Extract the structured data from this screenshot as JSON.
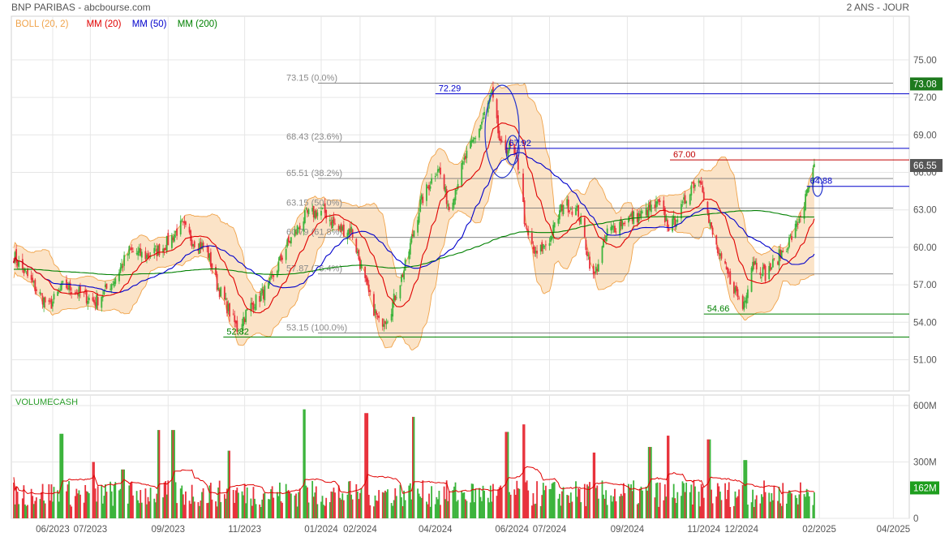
{
  "header": {
    "title": "BNP PARIBAS - abcbourse.com",
    "period": "2 ANS - JOUR"
  },
  "legend": [
    {
      "label": "BOLL (20, 2)",
      "color": "#f0a34a"
    },
    {
      "label": "MM (20)",
      "color": "#e00000"
    },
    {
      "label": "MM (50)",
      "color": "#0000cc"
    },
    {
      "label": "MM (200)",
      "color": "#008000"
    }
  ],
  "colors": {
    "up": "#3cb43c",
    "down": "#e8323c",
    "bollinger_fill": "#fbe3c7",
    "bollinger_line": "#f0a34a",
    "mm20": "#e00000",
    "mm50": "#0000cc",
    "mm200": "#008000",
    "grid": "#e6e6e6",
    "fib_line": "#777777",
    "fib_text": "#8a8a8a",
    "axis_text": "#555555",
    "price_badge": "#1e7a1e",
    "last_badge": "#555555",
    "volume_badge": "#1e9e1e"
  },
  "chart_data": [
    {
      "type": "candlestick",
      "title": "BNP PARIBAS - abcbourse.com",
      "x_labels": [
        "06/2023",
        "07/2023",
        "09/2023",
        "11/2023",
        "01/2024",
        "02/2024",
        "04/2024",
        "06/2024",
        "07/2024",
        "09/2024",
        "11/2024",
        "12/2024",
        "02/2025",
        "04/2025"
      ],
      "y_ticks": [
        "75.00",
        "72.00",
        "69.00",
        "66.00",
        "63.00",
        "60.00",
        "57.00",
        "54.00",
        "51.00"
      ],
      "ylim": [
        48.5,
        78.5
      ],
      "grid": true,
      "legend_position": "top-left",
      "price_path": [
        {
          "d": "2023-05-01",
          "p": 59.3
        },
        {
          "d": "2023-05-15",
          "p": 57.2
        },
        {
          "d": "2023-05-29",
          "p": 55.2
        },
        {
          "d": "2023-06-10",
          "p": 57.0
        },
        {
          "d": "2023-06-25",
          "p": 56.2
        },
        {
          "d": "2023-07-05",
          "p": 55.6
        },
        {
          "d": "2023-07-20",
          "p": 57.4
        },
        {
          "d": "2023-08-01",
          "p": 59.7
        },
        {
          "d": "2023-08-15",
          "p": 59.3
        },
        {
          "d": "2023-08-28",
          "p": 60.0
        },
        {
          "d": "2023-09-12",
          "p": 61.8
        },
        {
          "d": "2023-09-20",
          "p": 60.6
        },
        {
          "d": "2023-10-02",
          "p": 59.8
        },
        {
          "d": "2023-10-10",
          "p": 57.0
        },
        {
          "d": "2023-10-20",
          "p": 54.8
        },
        {
          "d": "2023-10-26",
          "p": 53.5
        },
        {
          "d": "2023-11-05",
          "p": 55.2
        },
        {
          "d": "2023-11-20",
          "p": 56.8
        },
        {
          "d": "2023-12-05",
          "p": 60.2
        },
        {
          "d": "2023-12-20",
          "p": 62.6
        },
        {
          "d": "2024-01-03",
          "p": 62.9
        },
        {
          "d": "2024-01-15",
          "p": 61.4
        },
        {
          "d": "2024-01-25",
          "p": 61.4
        },
        {
          "d": "2024-02-06",
          "p": 56.8
        },
        {
          "d": "2024-02-16",
          "p": 53.9
        },
        {
          "d": "2024-02-24",
          "p": 54.6
        },
        {
          "d": "2024-03-08",
          "p": 58.5
        },
        {
          "d": "2024-03-20",
          "p": 63.5
        },
        {
          "d": "2024-04-03",
          "p": 66.5
        },
        {
          "d": "2024-04-12",
          "p": 63.2
        },
        {
          "d": "2024-04-24",
          "p": 66.9
        },
        {
          "d": "2024-05-07",
          "p": 69.8
        },
        {
          "d": "2024-05-16",
          "p": 72.2
        },
        {
          "d": "2024-05-23",
          "p": 68.0
        },
        {
          "d": "2024-05-31",
          "p": 67.9
        },
        {
          "d": "2024-06-07",
          "p": 66.3
        },
        {
          "d": "2024-06-12",
          "p": 61.3
        },
        {
          "d": "2024-06-20",
          "p": 59.3
        },
        {
          "d": "2024-07-02",
          "p": 60.8
        },
        {
          "d": "2024-07-12",
          "p": 63.6
        },
        {
          "d": "2024-07-24",
          "p": 62.8
        },
        {
          "d": "2024-08-05",
          "p": 57.5
        },
        {
          "d": "2024-08-16",
          "p": 61.2
        },
        {
          "d": "2024-08-30",
          "p": 62.2
        },
        {
          "d": "2024-09-12",
          "p": 62.6
        },
        {
          "d": "2024-09-26",
          "p": 63.4
        },
        {
          "d": "2024-10-05",
          "p": 61.5
        },
        {
          "d": "2024-10-14",
          "p": 63.0
        },
        {
          "d": "2024-10-22",
          "p": 65.0
        },
        {
          "d": "2024-10-30",
          "p": 65.5
        },
        {
          "d": "2024-11-05",
          "p": 62.0
        },
        {
          "d": "2024-11-14",
          "p": 59.0
        },
        {
          "d": "2024-11-24",
          "p": 57.0
        },
        {
          "d": "2024-12-02",
          "p": 55.2
        },
        {
          "d": "2024-12-10",
          "p": 59.0
        },
        {
          "d": "2024-12-20",
          "p": 57.8
        },
        {
          "d": "2025-01-03",
          "p": 59.7
        },
        {
          "d": "2025-01-12",
          "p": 61.2
        },
        {
          "d": "2025-01-20",
          "p": 63.5
        },
        {
          "d": "2025-01-28",
          "p": 66.3
        }
      ],
      "fibonacci": {
        "high": 73.15,
        "low": 53.15,
        "start": "2024-01-01",
        "levels": [
          {
            "label": "73.15",
            "pct": "(0.0%)",
            "value": 73.15
          },
          {
            "label": "68.43",
            "pct": "(23.6%)",
            "value": 68.43
          },
          {
            "label": "65.51",
            "pct": "(38.2%)",
            "value": 65.51
          },
          {
            "label": "63.15",
            "pct": "(50.0%)",
            "value": 63.15
          },
          {
            "label": "60.79",
            "pct": "(61.8%)",
            "value": 60.79
          },
          {
            "label": "57.87",
            "pct": "(76.4%)",
            "value": 57.87
          },
          {
            "label": "53.15",
            "pct": "(100.0%)",
            "value": 53.15
          }
        ]
      },
      "annotations": [
        {
          "text": "72.29",
          "value": 72.29,
          "start": "2024-04-01",
          "color": "#0000cc"
        },
        {
          "text": "67.92",
          "value": 67.92,
          "start": "2024-05-27",
          "color": "#0000cc"
        },
        {
          "text": "67.00",
          "value": 67.0,
          "start": "2024-10-05",
          "color": "#c00000"
        },
        {
          "text": "64.88",
          "value": 64.88,
          "start": "2025-01-22",
          "color": "#0000cc"
        },
        {
          "text": "54.66",
          "value": 54.66,
          "start": "2024-11-01",
          "color": "#008000"
        },
        {
          "text": "52.82",
          "value": 52.82,
          "start": "2023-10-15",
          "color": "#008000"
        }
      ],
      "price_badges": [
        {
          "text": "73.08",
          "value": 73.08,
          "kind": "price"
        },
        {
          "text": "66.55",
          "value": 66.55,
          "kind": "last"
        }
      ]
    },
    {
      "type": "bar",
      "title": "VOLUMECASH",
      "y_ticks": [
        "600M",
        "300M",
        "0"
      ],
      "ylim": [
        0,
        600
      ],
      "unit": "M",
      "last_value": "162M",
      "typical_range": [
        60,
        250
      ],
      "spikes": [
        {
          "d": "2023-06-08",
          "v": 450
        },
        {
          "d": "2023-07-03",
          "v": 300
        },
        {
          "d": "2023-07-27",
          "v": 260
        },
        {
          "d": "2023-08-25",
          "v": 470
        },
        {
          "d": "2023-09-05",
          "v": 470
        },
        {
          "d": "2023-10-20",
          "v": 360
        },
        {
          "d": "2023-12-18",
          "v": 580
        },
        {
          "d": "2024-02-06",
          "v": 560
        },
        {
          "d": "2024-03-15",
          "v": 540
        },
        {
          "d": "2024-05-28",
          "v": 460
        },
        {
          "d": "2024-06-10",
          "v": 500
        },
        {
          "d": "2024-08-05",
          "v": 350
        },
        {
          "d": "2024-09-19",
          "v": 380
        },
        {
          "d": "2024-10-04",
          "v": 440
        },
        {
          "d": "2024-11-05",
          "v": 420
        },
        {
          "d": "2024-12-04",
          "v": 310
        }
      ]
    }
  ]
}
